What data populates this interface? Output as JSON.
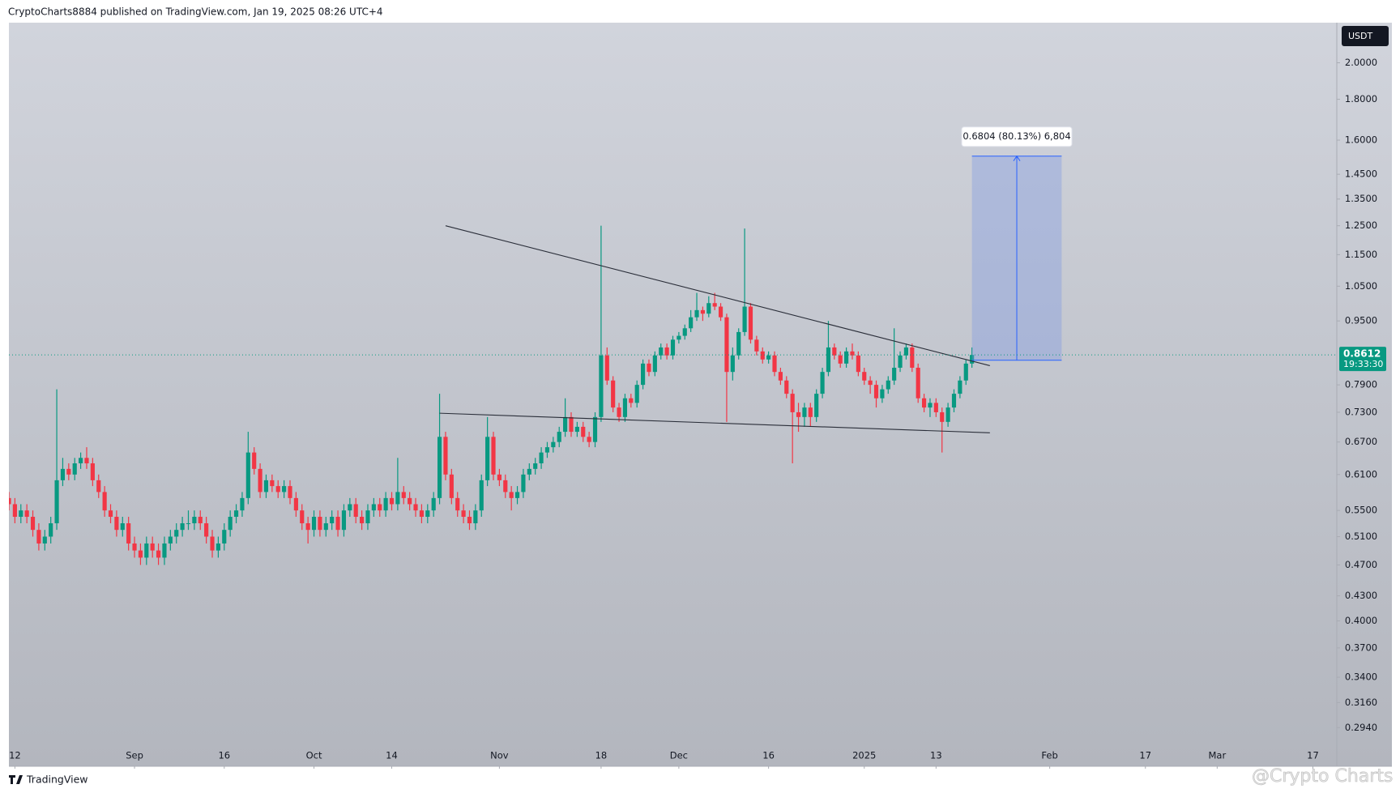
{
  "header": "CryptoCharts8884 published on TradingView.com, Jan 19, 2025 08:26 UTC+4",
  "footer": {
    "brand": "TradingView",
    "watermark": "@Crypto Charts"
  },
  "chart_data": {
    "type": "candlestick",
    "currency": "USDT",
    "up_color": "#089981",
    "down_color": "#f23645",
    "yscale": "log",
    "grid": false,
    "ylim": [
      0.263,
      2.245
    ],
    "yticks": [
      {
        "value": 2,
        "label": "2.0000"
      },
      {
        "value": 1.8,
        "label": "1.8000"
      },
      {
        "value": 1.6,
        "label": "1.6000"
      },
      {
        "value": 1.45,
        "label": "1.4500"
      },
      {
        "value": 1.35,
        "label": "1.3500"
      },
      {
        "value": 1.25,
        "label": "1.2500"
      },
      {
        "value": 1.15,
        "label": "1.1500"
      },
      {
        "value": 1.05,
        "label": "1.0500"
      },
      {
        "value": 0.95,
        "label": "0.9500"
      },
      {
        "value": 0.79,
        "label": "0.7900"
      },
      {
        "value": 0.73,
        "label": "0.7300"
      },
      {
        "value": 0.67,
        "label": "0.6700"
      },
      {
        "value": 0.61,
        "label": "0.6100"
      },
      {
        "value": 0.55,
        "label": "0.5500"
      },
      {
        "value": 0.51,
        "label": "0.5100"
      },
      {
        "value": 0.47,
        "label": "0.4700"
      },
      {
        "value": 0.43,
        "label": "0.4300"
      },
      {
        "value": 0.4,
        "label": "0.4000"
      },
      {
        "value": 0.37,
        "label": "0.3700"
      },
      {
        "value": 0.34,
        "label": "0.3400"
      },
      {
        "value": 0.316,
        "label": "0.3160"
      },
      {
        "value": 0.294,
        "label": "0.2940"
      }
    ],
    "xlim": [
      "2024-08-11",
      "2025-03-21"
    ],
    "xticks": [
      {
        "value": "2024-08-12",
        "label": "12"
      },
      {
        "value": "2024-09-01",
        "label": "Sep"
      },
      {
        "value": "2024-09-16",
        "label": "16"
      },
      {
        "value": "2024-10-01",
        "label": "Oct"
      },
      {
        "value": "2024-10-14",
        "label": "14"
      },
      {
        "value": "2024-11-01",
        "label": "Nov"
      },
      {
        "value": "2024-11-18",
        "label": "18"
      },
      {
        "value": "2024-12-01",
        "label": "Dec"
      },
      {
        "value": "2024-12-16",
        "label": "16"
      },
      {
        "value": "2025-01-01",
        "label": "2025"
      },
      {
        "value": "2025-01-13",
        "label": "13"
      },
      {
        "value": "2025-02-01",
        "label": "Feb"
      },
      {
        "value": "2025-02-17",
        "label": "17"
      },
      {
        "value": "2025-03-01",
        "label": "Mar"
      },
      {
        "value": "2025-03-17",
        "label": "17"
      }
    ],
    "x": [
      "2024-08-11",
      "2024-08-12",
      "2024-08-13",
      "2024-08-14",
      "2024-08-15",
      "2024-08-16",
      "2024-08-17",
      "2024-08-18",
      "2024-08-19",
      "2024-08-20",
      "2024-08-21",
      "2024-08-22",
      "2024-08-23",
      "2024-08-24",
      "2024-08-25",
      "2024-08-26",
      "2024-08-27",
      "2024-08-28",
      "2024-08-29",
      "2024-08-30",
      "2024-08-31",
      "2024-09-01",
      "2024-09-02",
      "2024-09-03",
      "2024-09-04",
      "2024-09-05",
      "2024-09-06",
      "2024-09-07",
      "2024-09-08",
      "2024-09-09",
      "2024-09-10",
      "2024-09-11",
      "2024-09-12",
      "2024-09-13",
      "2024-09-14",
      "2024-09-15",
      "2024-09-16",
      "2024-09-17",
      "2024-09-18",
      "2024-09-19",
      "2024-09-20",
      "2024-09-21",
      "2024-09-22",
      "2024-09-23",
      "2024-09-24",
      "2024-09-25",
      "2024-09-26",
      "2024-09-27",
      "2024-09-28",
      "2024-09-29",
      "2024-09-30",
      "2024-10-01",
      "2024-10-02",
      "2024-10-03",
      "2024-10-04",
      "2024-10-05",
      "2024-10-06",
      "2024-10-07",
      "2024-10-08",
      "2024-10-09",
      "2024-10-10",
      "2024-10-11",
      "2024-10-12",
      "2024-10-13",
      "2024-10-14",
      "2024-10-15",
      "2024-10-16",
      "2024-10-17",
      "2024-10-18",
      "2024-10-19",
      "2024-10-20",
      "2024-10-21",
      "2024-10-22",
      "2024-10-23",
      "2024-10-24",
      "2024-10-25",
      "2024-10-26",
      "2024-10-27",
      "2024-10-28",
      "2024-10-29",
      "2024-10-30",
      "2024-10-31",
      "2024-11-01",
      "2024-11-02",
      "2024-11-03",
      "2024-11-04",
      "2024-11-05",
      "2024-11-06",
      "2024-11-07",
      "2024-11-08",
      "2024-11-09",
      "2024-11-10",
      "2024-11-11",
      "2024-11-12",
      "2024-11-13",
      "2024-11-14",
      "2024-11-15",
      "2024-11-16",
      "2024-11-17",
      "2024-11-18",
      "2024-11-19",
      "2024-11-20",
      "2024-11-21",
      "2024-11-22",
      "2024-11-23",
      "2024-11-24",
      "2024-11-25",
      "2024-11-26",
      "2024-11-27",
      "2024-11-28",
      "2024-11-29",
      "2024-11-30",
      "2024-12-01",
      "2024-12-02",
      "2024-12-03",
      "2024-12-04",
      "2024-12-05",
      "2024-12-06",
      "2024-12-07",
      "2024-12-08",
      "2024-12-09",
      "2024-12-10",
      "2024-12-11",
      "2024-12-12",
      "2024-12-13",
      "2024-12-14",
      "2024-12-15",
      "2024-12-16",
      "2024-12-17",
      "2024-12-18",
      "2024-12-19",
      "2024-12-20",
      "2024-12-21",
      "2024-12-22",
      "2024-12-23",
      "2024-12-24",
      "2024-12-25",
      "2024-12-26",
      "2024-12-27",
      "2024-12-28",
      "2024-12-29",
      "2024-12-30",
      "2024-12-31",
      "2025-01-01",
      "2025-01-02",
      "2025-01-03",
      "2025-01-04",
      "2025-01-05",
      "2025-01-06",
      "2025-01-07",
      "2025-01-08",
      "2025-01-09",
      "2025-01-10",
      "2025-01-11",
      "2025-01-12",
      "2025-01-13",
      "2025-01-14",
      "2025-01-15",
      "2025-01-16",
      "2025-01-17",
      "2025-01-18",
      "2025-01-19"
    ],
    "open": [
      0.57,
      0.56,
      0.54,
      0.55,
      0.54,
      0.52,
      0.5,
      0.51,
      0.53,
      0.6,
      0.62,
      0.61,
      0.63,
      0.64,
      0.63,
      0.6,
      0.58,
      0.55,
      0.54,
      0.52,
      0.53,
      0.5,
      0.49,
      0.48,
      0.5,
      0.49,
      0.48,
      0.5,
      0.51,
      0.52,
      0.53,
      0.53,
      0.54,
      0.53,
      0.51,
      0.49,
      0.5,
      0.52,
      0.54,
      0.55,
      0.57,
      0.65,
      0.62,
      0.58,
      0.6,
      0.59,
      0.58,
      0.59,
      0.57,
      0.55,
      0.53,
      0.52,
      0.54,
      0.52,
      0.53,
      0.54,
      0.52,
      0.55,
      0.56,
      0.54,
      0.53,
      0.55,
      0.56,
      0.55,
      0.57,
      0.56,
      0.58,
      0.57,
      0.56,
      0.55,
      0.54,
      0.55,
      0.57,
      0.68,
      0.61,
      0.57,
      0.55,
      0.54,
      0.53,
      0.55,
      0.6,
      0.68,
      0.61,
      0.6,
      0.58,
      0.57,
      0.58,
      0.61,
      0.62,
      0.63,
      0.65,
      0.66,
      0.67,
      0.69,
      0.72,
      0.69,
      0.7,
      0.68,
      0.67,
      0.72,
      0.86,
      0.8,
      0.74,
      0.72,
      0.76,
      0.75,
      0.79,
      0.84,
      0.82,
      0.86,
      0.88,
      0.86,
      0.9,
      0.91,
      0.93,
      0.96,
      0.98,
      0.97,
      1.0,
      0.99,
      0.96,
      0.82,
      0.86,
      0.92,
      0.99,
      0.9,
      0.87,
      0.85,
      0.86,
      0.82,
      0.8,
      0.77,
      0.73,
      0.72,
      0.74,
      0.72,
      0.77,
      0.82,
      0.88,
      0.86,
      0.84,
      0.87,
      0.86,
      0.82,
      0.8,
      0.79,
      0.76,
      0.78,
      0.8,
      0.83,
      0.86,
      0.88,
      0.83,
      0.76,
      0.74,
      0.75,
      0.73,
      0.71,
      0.74,
      0.77,
      0.8,
      0.84
    ],
    "high": [
      0.58,
      0.57,
      0.56,
      0.56,
      0.55,
      0.53,
      0.52,
      0.54,
      0.78,
      0.64,
      0.63,
      0.64,
      0.65,
      0.66,
      0.64,
      0.61,
      0.59,
      0.56,
      0.55,
      0.54,
      0.54,
      0.51,
      0.5,
      0.51,
      0.51,
      0.5,
      0.51,
      0.52,
      0.53,
      0.54,
      0.55,
      0.55,
      0.55,
      0.54,
      0.52,
      0.51,
      0.53,
      0.55,
      0.56,
      0.58,
      0.69,
      0.66,
      0.63,
      0.61,
      0.61,
      0.6,
      0.6,
      0.6,
      0.58,
      0.56,
      0.54,
      0.55,
      0.55,
      0.54,
      0.55,
      0.55,
      0.56,
      0.57,
      0.57,
      0.55,
      0.56,
      0.57,
      0.57,
      0.58,
      0.58,
      0.64,
      0.59,
      0.58,
      0.57,
      0.56,
      0.56,
      0.58,
      0.77,
      0.69,
      0.62,
      0.58,
      0.56,
      0.55,
      0.56,
      0.61,
      0.72,
      0.69,
      0.62,
      0.61,
      0.59,
      0.59,
      0.62,
      0.63,
      0.64,
      0.66,
      0.67,
      0.68,
      0.7,
      0.76,
      0.73,
      0.71,
      0.71,
      0.69,
      0.73,
      1.25,
      0.88,
      0.81,
      0.75,
      0.77,
      0.77,
      0.8,
      0.85,
      0.85,
      0.87,
      0.89,
      0.89,
      0.91,
      0.92,
      0.94,
      0.98,
      1.03,
      0.99,
      1.02,
      1.03,
      1.0,
      0.97,
      0.88,
      0.93,
      1.24,
      1.0,
      0.91,
      0.88,
      0.87,
      0.87,
      0.83,
      0.81,
      0.78,
      0.75,
      0.75,
      0.75,
      0.78,
      0.83,
      0.95,
      0.89,
      0.87,
      0.88,
      0.89,
      0.87,
      0.83,
      0.81,
      0.8,
      0.79,
      0.81,
      0.93,
      0.87,
      0.89,
      0.89,
      0.84,
      0.77,
      0.76,
      0.76,
      0.74,
      0.75,
      0.78,
      0.81,
      0.85,
      0.88
    ],
    "low": [
      0.55,
      0.53,
      0.53,
      0.53,
      0.51,
      0.49,
      0.49,
      0.5,
      0.52,
      0.59,
      0.6,
      0.6,
      0.62,
      0.62,
      0.59,
      0.57,
      0.54,
      0.53,
      0.51,
      0.51,
      0.49,
      0.48,
      0.47,
      0.47,
      0.48,
      0.47,
      0.47,
      0.49,
      0.5,
      0.51,
      0.52,
      0.52,
      0.52,
      0.5,
      0.48,
      0.48,
      0.49,
      0.51,
      0.53,
      0.54,
      0.56,
      0.61,
      0.57,
      0.57,
      0.58,
      0.57,
      0.57,
      0.56,
      0.54,
      0.52,
      0.5,
      0.51,
      0.51,
      0.51,
      0.52,
      0.51,
      0.51,
      0.54,
      0.53,
      0.52,
      0.52,
      0.54,
      0.54,
      0.54,
      0.55,
      0.55,
      0.56,
      0.55,
      0.54,
      0.53,
      0.53,
      0.54,
      0.56,
      0.6,
      0.56,
      0.54,
      0.53,
      0.52,
      0.52,
      0.54,
      0.59,
      0.6,
      0.59,
      0.57,
      0.55,
      0.56,
      0.57,
      0.6,
      0.61,
      0.62,
      0.64,
      0.65,
      0.66,
      0.68,
      0.68,
      0.68,
      0.67,
      0.66,
      0.66,
      0.71,
      0.79,
      0.73,
      0.71,
      0.71,
      0.74,
      0.74,
      0.78,
      0.81,
      0.81,
      0.85,
      0.85,
      0.85,
      0.89,
      0.9,
      0.92,
      0.95,
      0.95,
      0.96,
      0.98,
      0.95,
      0.71,
      0.8,
      0.85,
      0.91,
      0.89,
      0.86,
      0.84,
      0.84,
      0.81,
      0.79,
      0.76,
      0.63,
      0.69,
      0.7,
      0.7,
      0.71,
      0.76,
      0.81,
      0.85,
      0.83,
      0.83,
      0.85,
      0.81,
      0.79,
      0.77,
      0.74,
      0.75,
      0.77,
      0.79,
      0.82,
      0.85,
      0.82,
      0.75,
      0.73,
      0.72,
      0.72,
      0.65,
      0.7,
      0.73,
      0.76,
      0.79,
      0.83
    ],
    "close": [
      0.56,
      0.54,
      0.55,
      0.54,
      0.52,
      0.5,
      0.51,
      0.53,
      0.6,
      0.62,
      0.61,
      0.63,
      0.64,
      0.63,
      0.6,
      0.58,
      0.55,
      0.54,
      0.52,
      0.53,
      0.5,
      0.49,
      0.48,
      0.5,
      0.49,
      0.48,
      0.5,
      0.51,
      0.52,
      0.53,
      0.53,
      0.54,
      0.53,
      0.51,
      0.49,
      0.5,
      0.52,
      0.54,
      0.55,
      0.57,
      0.65,
      0.62,
      0.58,
      0.6,
      0.59,
      0.58,
      0.59,
      0.57,
      0.55,
      0.53,
      0.52,
      0.54,
      0.52,
      0.53,
      0.54,
      0.52,
      0.55,
      0.56,
      0.54,
      0.53,
      0.55,
      0.56,
      0.55,
      0.57,
      0.56,
      0.58,
      0.57,
      0.56,
      0.55,
      0.54,
      0.55,
      0.57,
      0.68,
      0.61,
      0.57,
      0.55,
      0.54,
      0.53,
      0.55,
      0.6,
      0.68,
      0.61,
      0.6,
      0.58,
      0.57,
      0.58,
      0.61,
      0.62,
      0.63,
      0.65,
      0.66,
      0.67,
      0.69,
      0.72,
      0.69,
      0.7,
      0.68,
      0.67,
      0.72,
      0.86,
      0.8,
      0.74,
      0.72,
      0.76,
      0.75,
      0.79,
      0.84,
      0.82,
      0.86,
      0.88,
      0.86,
      0.9,
      0.91,
      0.93,
      0.96,
      0.98,
      0.97,
      1.0,
      0.99,
      0.96,
      0.82,
      0.86,
      0.92,
      0.99,
      0.9,
      0.87,
      0.85,
      0.86,
      0.82,
      0.8,
      0.77,
      0.73,
      0.72,
      0.74,
      0.72,
      0.77,
      0.82,
      0.88,
      0.86,
      0.84,
      0.87,
      0.86,
      0.82,
      0.8,
      0.79,
      0.76,
      0.78,
      0.8,
      0.83,
      0.86,
      0.88,
      0.83,
      0.76,
      0.74,
      0.75,
      0.73,
      0.71,
      0.74,
      0.77,
      0.8,
      0.84,
      0.8612
    ],
    "last_price": 0.8612,
    "countdown": "19:33:30",
    "trend_lines": [
      {
        "x": [
          "2024-10-23",
          "2025-01-22"
        ],
        "y": [
          1.25,
          0.835
        ]
      },
      {
        "x": [
          "2024-10-22",
          "2025-01-22"
        ],
        "y": [
          0.728,
          0.688
        ]
      }
    ],
    "projection": {
      "x": [
        "2025-01-19",
        "2025-02-03"
      ],
      "y": [
        0.848,
        1.528
      ],
      "label": "0.6804 (80.13%) 6,804"
    }
  }
}
